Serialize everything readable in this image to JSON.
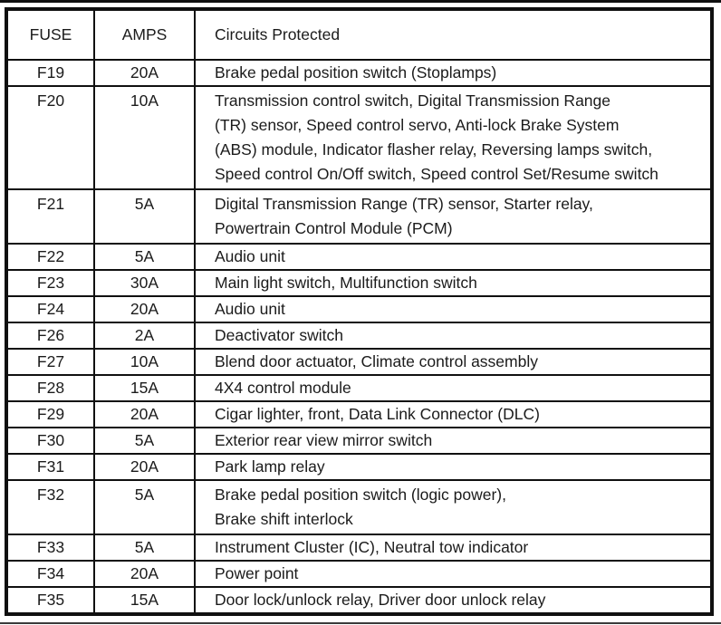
{
  "table": {
    "headers": [
      "FUSE",
      "AMPS",
      "Circuits Protected"
    ],
    "rows": [
      {
        "fuse": "F19",
        "amps": "20A",
        "circuits": [
          "Brake pedal position switch (Stoplamps)"
        ]
      },
      {
        "fuse": "F20",
        "amps": "10A",
        "circuits": [
          "Transmission control switch, Digital Transmission Range",
          "(TR) sensor, Speed control servo, Anti-lock Brake System",
          "(ABS) module, Indicator flasher relay, Reversing lamps switch,",
          "Speed control On/Off switch, Speed control Set/Resume switch"
        ]
      },
      {
        "fuse": "F21",
        "amps": "5A",
        "circuits": [
          "Digital Transmission Range (TR) sensor, Starter relay,",
          "Powertrain Control Module (PCM)"
        ]
      },
      {
        "fuse": "F22",
        "amps": "5A",
        "circuits": [
          "Audio unit"
        ]
      },
      {
        "fuse": "F23",
        "amps": "30A",
        "circuits": [
          "Main light switch, Multifunction switch"
        ]
      },
      {
        "fuse": "F24",
        "amps": "20A",
        "circuits": [
          "Audio unit"
        ]
      },
      {
        "fuse": "F26",
        "amps": "2A",
        "circuits": [
          "Deactivator switch"
        ]
      },
      {
        "fuse": "F27",
        "amps": "10A",
        "circuits": [
          "Blend door actuator, Climate control assembly"
        ]
      },
      {
        "fuse": "F28",
        "amps": "15A",
        "circuits": [
          "4X4 control module"
        ]
      },
      {
        "fuse": "F29",
        "amps": "20A",
        "circuits": [
          "Cigar lighter, front, Data Link Connector (DLC)"
        ]
      },
      {
        "fuse": "F30",
        "amps": "5A",
        "circuits": [
          "Exterior rear view mirror switch"
        ]
      },
      {
        "fuse": "F31",
        "amps": "20A",
        "circuits": [
          "Park lamp relay"
        ]
      },
      {
        "fuse": "F32",
        "amps": "5A",
        "circuits": [
          "Brake pedal position switch (logic power),",
          "Brake shift interlock"
        ]
      },
      {
        "fuse": "F33",
        "amps": "5A",
        "circuits": [
          "Instrument Cluster (IC), Neutral tow indicator"
        ]
      },
      {
        "fuse": "F34",
        "amps": "20A",
        "circuits": [
          "Power point"
        ]
      },
      {
        "fuse": "F35",
        "amps": "15A",
        "circuits": [
          "Door lock/unlock relay, Driver door unlock relay"
        ]
      }
    ]
  },
  "colors": {
    "border": "#101010",
    "text": "#1b1b1b",
    "background": "#ffffff"
  }
}
